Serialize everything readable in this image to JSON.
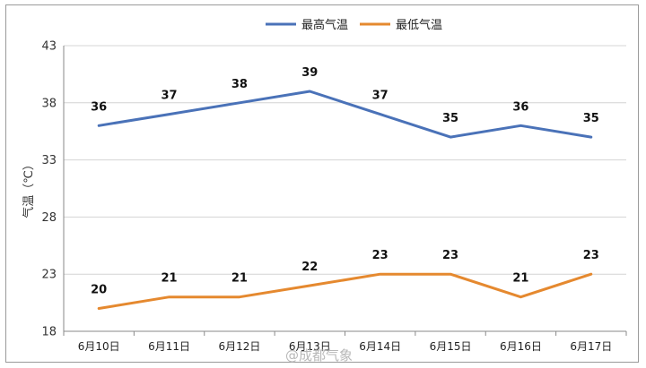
{
  "chart_data": {
    "type": "line",
    "categories": [
      "6月10日",
      "6月11日",
      "6月12日",
      "6月13日",
      "6月14日",
      "6月15日",
      "6月16日",
      "6月17日"
    ],
    "series": [
      {
        "name": "最高气温",
        "color": "#4a72b8",
        "values": [
          36,
          37,
          38,
          39,
          37,
          35,
          36,
          35
        ]
      },
      {
        "name": "最低气温",
        "color": "#e5892f",
        "values": [
          20,
          21,
          21,
          22,
          23,
          23,
          21,
          23
        ]
      }
    ],
    "title": "",
    "ylabel": "气温（℃）",
    "xlabel": "",
    "ylim": [
      18,
      43
    ],
    "yticks": [
      18,
      23,
      28,
      33,
      38,
      43
    ],
    "grid": true,
    "legend": "top-center",
    "data_labels": true
  },
  "watermark": "@成都气象"
}
